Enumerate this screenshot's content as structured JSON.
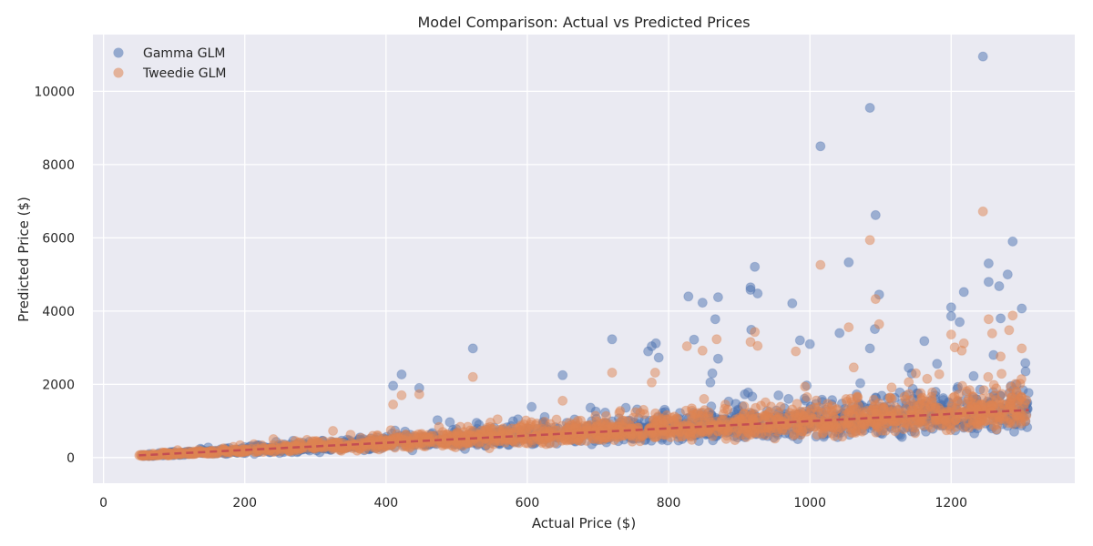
{
  "chart_data": {
    "type": "scatter",
    "title": "Model Comparison: Actual vs Predicted Prices",
    "xlabel": "Actual Price ($)",
    "ylabel": "Predicted Price ($)",
    "xlim": [
      -15,
      1375
    ],
    "ylim": [
      -700,
      11550
    ],
    "xticks": [
      0,
      200,
      400,
      600,
      800,
      1000,
      1200
    ],
    "yticks": [
      0,
      2000,
      4000,
      6000,
      8000,
      10000
    ],
    "grid": true,
    "legend_position": "top-left",
    "background": "#eaeaf2",
    "series": [
      {
        "name": "Gamma GLM",
        "color": "#4c72b0",
        "outliers": [
          [
            1245,
            10950
          ],
          [
            1085,
            9550
          ],
          [
            1015,
            8500
          ],
          [
            1093,
            6620
          ],
          [
            1287,
            5900
          ],
          [
            1055,
            5330
          ],
          [
            1253,
            5300
          ],
          [
            922,
            5210
          ],
          [
            1280,
            5000
          ],
          [
            1253,
            4800
          ],
          [
            1268,
            4680
          ],
          [
            916,
            4650
          ],
          [
            916,
            4580
          ],
          [
            1218,
            4520
          ],
          [
            926,
            4480
          ],
          [
            1098,
            4450
          ],
          [
            828,
            4400
          ],
          [
            870,
            4380
          ],
          [
            848,
            4230
          ],
          [
            975,
            4210
          ],
          [
            1200,
            4100
          ],
          [
            1300,
            4070
          ],
          [
            1200,
            3860
          ],
          [
            1212,
            3700
          ],
          [
            866,
            3780
          ],
          [
            1270,
            3800
          ],
          [
            1092,
            3510
          ],
          [
            917,
            3490
          ],
          [
            720,
            3230
          ],
          [
            782,
            3120
          ],
          [
            986,
            3200
          ],
          [
            836,
            3220
          ],
          [
            776,
            3040
          ],
          [
            1000,
            3100
          ],
          [
            771,
            2900
          ],
          [
            523,
            2980
          ],
          [
            1162,
            3180
          ],
          [
            1085,
            2980
          ],
          [
            786,
            2730
          ],
          [
            1042,
            3400
          ],
          [
            422,
            2270
          ],
          [
            650,
            2250
          ],
          [
            447,
            1900
          ],
          [
            410,
            1960
          ],
          [
            870,
            2700
          ],
          [
            862,
            2300
          ],
          [
            1260,
            2800
          ],
          [
            1305,
            2580
          ],
          [
            1180,
            2560
          ],
          [
            1140,
            2450
          ]
        ],
        "trend_jitter": 0.55,
        "points": 1500
      },
      {
        "name": "Tweedie GLM",
        "color": "#dd8452",
        "outliers": [
          [
            1245,
            6720
          ],
          [
            1085,
            5940
          ],
          [
            1015,
            5260
          ],
          [
            1093,
            4330
          ],
          [
            1098,
            3640
          ],
          [
            1055,
            3560
          ],
          [
            1287,
            3880
          ],
          [
            1253,
            3780
          ],
          [
            1282,
            3480
          ],
          [
            922,
            3430
          ],
          [
            916,
            3160
          ],
          [
            1200,
            3360
          ],
          [
            826,
            3040
          ],
          [
            868,
            3230
          ],
          [
            926,
            3050
          ],
          [
            848,
            2920
          ],
          [
            980,
            2900
          ],
          [
            1300,
            2980
          ],
          [
            1270,
            2760
          ],
          [
            1205,
            3010
          ],
          [
            1218,
            3120
          ],
          [
            1258,
            3390
          ],
          [
            1215,
            2920
          ],
          [
            523,
            2200
          ],
          [
            720,
            2320
          ],
          [
            781,
            2320
          ],
          [
            776,
            2050
          ],
          [
            1062,
            2460
          ],
          [
            1150,
            2300
          ],
          [
            410,
            1450
          ],
          [
            422,
            1700
          ],
          [
            447,
            1730
          ],
          [
            650,
            1550
          ],
          [
            1166,
            2150
          ],
          [
            1140,
            2060
          ]
        ],
        "trend_jitter": 0.5,
        "points": 1700
      }
    ],
    "reference_line": {
      "name": "Trend",
      "color": "#c44e52",
      "style": "dashed",
      "points": [
        [
          50,
          60
        ],
        [
          1310,
          1300
        ]
      ]
    }
  }
}
